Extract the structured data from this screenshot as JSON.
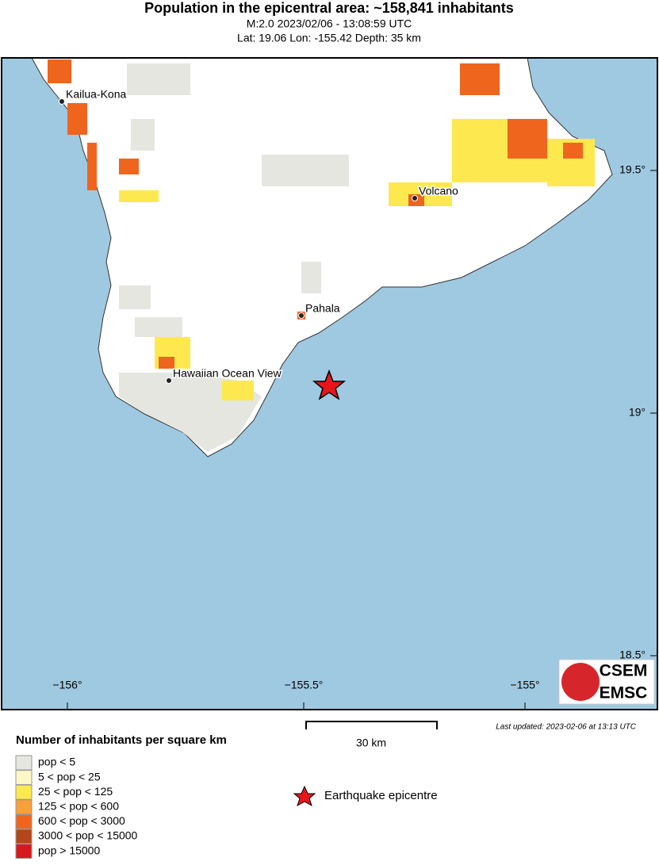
{
  "header": {
    "title": "Population in the epicentral area: ~158,841 inhabitants",
    "subtitle": "M:2.0 2023/02/06 - 13:08:59 UTC",
    "location": "Lat: 19.06 Lon: -155.42 Depth: 35 km"
  },
  "map": {
    "places": [
      {
        "label": "Kailua-Kona"
      },
      {
        "label": "Volcano"
      },
      {
        "label": "Pahala"
      },
      {
        "label": "Hawaiian Ocean View"
      }
    ],
    "lat_labels": [
      "19.5°",
      "19°",
      "18.5°"
    ],
    "lon_labels": [
      "−156°",
      "−155.5°",
      "−155°"
    ],
    "scale_label": "30 km",
    "last_updated": "Last updated: 2023-02-06 at 13:13 UTC",
    "logo": [
      "CSEM",
      "EMSC"
    ]
  },
  "legend": {
    "title": "Number of inhabitants per square km",
    "items": [
      {
        "label": "pop < 5",
        "color": "#e6e6e1"
      },
      {
        "label": "5 < pop < 25",
        "color": "#fdf7c6"
      },
      {
        "label": "25 < pop < 125",
        "color": "#fde94f"
      },
      {
        "label": "125 < pop < 600",
        "color": "#f8a03a"
      },
      {
        "label": "600 < pop < 3000",
        "color": "#f0651e"
      },
      {
        "label": "3000 < pop < 15000",
        "color": "#b3461b"
      },
      {
        "label": "pop > 15000",
        "color": "#d7191c"
      }
    ],
    "epicentre": "Earthquake epicentre"
  }
}
